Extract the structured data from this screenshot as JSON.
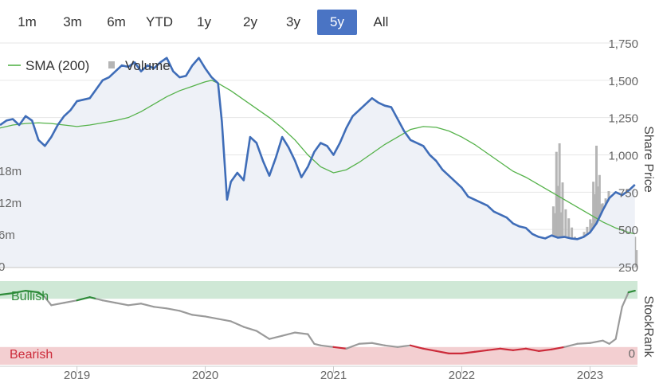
{
  "range_selector": {
    "buttons": [
      "1m",
      "3m",
      "6m",
      "YTD",
      "1y",
      "2y",
      "3y",
      "5y",
      "All"
    ],
    "active": "5y"
  },
  "colors": {
    "price_line": "#3f6db8",
    "sma_line": "#55b24a",
    "volume_bar": "#b5b5b5",
    "price_area": "#eef1f7",
    "bullish_band": "#cfe8d6",
    "bearish_band": "#f3cfd1",
    "rank_neutral": "#9a9a9a",
    "rank_bullish": "#2e8b3a",
    "rank_bearish": "#cc2b3a",
    "active_button": "#4a74c4"
  },
  "chart_data": [
    {
      "type": "line",
      "legend": [
        {
          "name": "SMA (200)",
          "marker": "line"
        },
        {
          "name": "Volume",
          "marker": "square"
        }
      ],
      "ylabel": "Share Price",
      "y_ticks": [
        "250",
        "500",
        "750",
        "1,000",
        "1,250",
        "1,500",
        "1,750"
      ],
      "ylim": [
        250,
        1750
      ],
      "volume_ticks": [
        "0",
        "6m",
        "12m",
        "18m"
      ],
      "volume_lim": [
        0,
        24
      ],
      "x_ticks": [
        "2019",
        "2020",
        "2021",
        "2022",
        "2023"
      ],
      "xlim": [
        2018.4,
        2023.37
      ],
      "series": [
        {
          "name": "Share Price",
          "x": [
            2018.4,
            2018.45,
            2018.5,
            2018.55,
            2018.6,
            2018.65,
            2018.7,
            2018.75,
            2018.8,
            2018.85,
            2018.9,
            2018.95,
            2019.0,
            2019.05,
            2019.1,
            2019.15,
            2019.2,
            2019.25,
            2019.3,
            2019.35,
            2019.4,
            2019.45,
            2019.5,
            2019.55,
            2019.6,
            2019.65,
            2019.7,
            2019.75,
            2019.8,
            2019.85,
            2019.9,
            2019.95,
            2020.0,
            2020.05,
            2020.1,
            2020.13,
            2020.17,
            2020.2,
            2020.25,
            2020.3,
            2020.35,
            2020.4,
            2020.45,
            2020.5,
            2020.55,
            2020.6,
            2020.65,
            2020.7,
            2020.75,
            2020.8,
            2020.85,
            2020.9,
            2020.95,
            2021.0,
            2021.05,
            2021.1,
            2021.15,
            2021.2,
            2021.25,
            2021.3,
            2021.35,
            2021.4,
            2021.45,
            2021.5,
            2021.55,
            2021.6,
            2021.65,
            2021.7,
            2021.75,
            2021.8,
            2021.85,
            2021.9,
            2021.95,
            2022.0,
            2022.05,
            2022.1,
            2022.15,
            2022.2,
            2022.25,
            2022.3,
            2022.35,
            2022.4,
            2022.45,
            2022.5,
            2022.55,
            2022.6,
            2022.65,
            2022.7,
            2022.75,
            2022.8,
            2022.85,
            2022.9,
            2022.95,
            2023.0,
            2023.05,
            2023.1,
            2023.15,
            2023.2,
            2023.25,
            2023.3,
            2023.35
          ],
          "values": [
            1200,
            1230,
            1240,
            1200,
            1260,
            1230,
            1100,
            1060,
            1120,
            1200,
            1260,
            1300,
            1360,
            1370,
            1380,
            1440,
            1500,
            1520,
            1560,
            1600,
            1590,
            1620,
            1560,
            1600,
            1580,
            1620,
            1650,
            1560,
            1520,
            1530,
            1600,
            1650,
            1580,
            1520,
            1480,
            1220,
            700,
            820,
            880,
            830,
            1120,
            1080,
            960,
            860,
            980,
            1120,
            1050,
            960,
            850,
            920,
            1020,
            1080,
            1060,
            1000,
            1080,
            1180,
            1260,
            1300,
            1340,
            1380,
            1350,
            1330,
            1320,
            1240,
            1160,
            1100,
            1080,
            1060,
            1000,
            960,
            900,
            860,
            820,
            780,
            720,
            700,
            680,
            660,
            620,
            600,
            580,
            540,
            520,
            510,
            470,
            450,
            440,
            460,
            445,
            450,
            440,
            435,
            450,
            480,
            540,
            630,
            710,
            750,
            730,
            760,
            800
          ]
        },
        {
          "name": "SMA (200)",
          "x": [
            2018.4,
            2018.5,
            2018.6,
            2018.7,
            2018.8,
            2018.9,
            2019.0,
            2019.1,
            2019.2,
            2019.3,
            2019.4,
            2019.5,
            2019.6,
            2019.7,
            2019.8,
            2019.9,
            2020.0,
            2020.05,
            2020.1,
            2020.2,
            2020.3,
            2020.4,
            2020.5,
            2020.6,
            2020.7,
            2020.8,
            2020.9,
            2021.0,
            2021.1,
            2021.2,
            2021.3,
            2021.4,
            2021.5,
            2021.6,
            2021.7,
            2021.8,
            2021.9,
            2022.0,
            2022.1,
            2022.2,
            2022.3,
            2022.4,
            2022.5,
            2022.6,
            2022.7,
            2022.8,
            2022.9,
            2023.0,
            2023.1,
            2023.2,
            2023.3,
            2023.35
          ],
          "values": [
            1180,
            1200,
            1210,
            1215,
            1210,
            1200,
            1190,
            1200,
            1215,
            1230,
            1250,
            1290,
            1340,
            1390,
            1430,
            1460,
            1490,
            1500,
            1480,
            1430,
            1370,
            1310,
            1250,
            1180,
            1100,
            1000,
            920,
            880,
            900,
            950,
            1010,
            1070,
            1120,
            1170,
            1190,
            1185,
            1160,
            1120,
            1070,
            1010,
            950,
            890,
            850,
            800,
            750,
            700,
            650,
            600,
            550,
            510,
            480,
            470
          ]
        },
        {
          "name": "Volume",
          "x": [
            2018.4,
            2018.5,
            2018.6,
            2018.7,
            2018.8,
            2018.9,
            2019.0,
            2019.1,
            2019.2,
            2019.3,
            2019.4,
            2019.5,
            2019.6,
            2019.7,
            2019.8,
            2019.9,
            2020.0,
            2020.1,
            2020.15,
            2020.2,
            2020.3,
            2020.4,
            2020.5,
            2020.6,
            2020.7,
            2020.8,
            2020.9,
            2021.0,
            2021.1,
            2021.2,
            2021.3,
            2021.4,
            2021.5,
            2021.6,
            2021.7,
            2021.8,
            2021.9,
            2022.0,
            2022.1,
            2022.2,
            2022.3,
            2022.4,
            2022.5,
            2022.6,
            2022.7,
            2022.75,
            2022.8,
            2022.9,
            2023.0,
            2023.05,
            2023.1,
            2023.15,
            2023.2,
            2023.25,
            2023.3
          ],
          "values": [
            0.8,
            0.6,
            0.9,
            0.7,
            0.8,
            0.6,
            0.7,
            0.8,
            0.9,
            0.6,
            0.7,
            0.8,
            0.9,
            0.7,
            0.8,
            0.6,
            0.9,
            1.2,
            4.0,
            3.0,
            3.5,
            2.5,
            2.0,
            1.8,
            2.2,
            3.0,
            4.5,
            2.5,
            2.0,
            1.8,
            2.2,
            1.6,
            1.4,
            1.5,
            1.8,
            2.0,
            2.5,
            1.8,
            1.6,
            2.0,
            2.2,
            2.0,
            3.0,
            2.2,
            4.0,
            19.0,
            8.0,
            3.0,
            6.0,
            17.0,
            9.0,
            12.0,
            7.0,
            5.0,
            4.0
          ]
        }
      ]
    },
    {
      "type": "line",
      "ylabel": "StockRank",
      "y_ticks": [
        "0"
      ],
      "ylim": [
        0,
        100
      ],
      "band_labels": {
        "upper": "Bullish",
        "lower": "Bearish"
      },
      "bands": {
        "bullish_min": 80,
        "bearish_max": 20
      },
      "series": [
        {
          "name": "StockRank",
          "x": [
            2018.4,
            2018.5,
            2018.6,
            2018.7,
            2018.75,
            2018.8,
            2018.9,
            2019.0,
            2019.1,
            2019.15,
            2019.2,
            2019.3,
            2019.4,
            2019.5,
            2019.6,
            2019.7,
            2019.8,
            2019.9,
            2020.0,
            2020.1,
            2020.2,
            2020.3,
            2020.4,
            2020.5,
            2020.6,
            2020.7,
            2020.8,
            2020.85,
            2020.9,
            2021.0,
            2021.1,
            2021.2,
            2021.3,
            2021.4,
            2021.5,
            2021.6,
            2021.7,
            2021.8,
            2021.9,
            2022.0,
            2022.1,
            2022.2,
            2022.3,
            2022.4,
            2022.5,
            2022.6,
            2022.7,
            2022.8,
            2022.9,
            2023.0,
            2023.1,
            2023.15,
            2023.2,
            2023.25,
            2023.3,
            2023.35
          ],
          "values": [
            85,
            87,
            90,
            88,
            82,
            72,
            75,
            78,
            82,
            80,
            78,
            75,
            72,
            74,
            70,
            68,
            65,
            60,
            58,
            55,
            52,
            45,
            40,
            30,
            34,
            38,
            36,
            24,
            22,
            20,
            18,
            24,
            25,
            22,
            20,
            22,
            18,
            15,
            12,
            12,
            14,
            16,
            18,
            16,
            18,
            15,
            17,
            20,
            24,
            25,
            28,
            24,
            30,
            70,
            88,
            90
          ]
        }
      ]
    }
  ]
}
